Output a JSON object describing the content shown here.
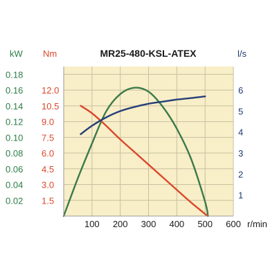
{
  "chart_data": {
    "type": "line",
    "title": "MR25-480-KSL-ATEX",
    "xlabel": "r/min",
    "xlim": [
      0,
      600
    ],
    "x_ticks": [
      "100",
      "200",
      "300",
      "400",
      "500",
      "600"
    ],
    "grid": true,
    "legend": "none",
    "plot_background": "#f8eec8",
    "axes": [
      {
        "unit": "kW",
        "side": "left-outer",
        "color": "#2e7d46",
        "ylim": [
          0,
          0.19
        ],
        "ticks": [
          "0.02",
          "0.04",
          "0.06",
          "0.08",
          "0.10",
          "0.12",
          "0.14",
          "0.16",
          "0.18"
        ]
      },
      {
        "unit": "Nm",
        "side": "left-inner",
        "color": "#d9482b",
        "ylim": [
          0,
          14.25
        ],
        "ticks": [
          "1.5",
          "3.0",
          "4.5",
          "6.0",
          "7.5",
          "9.0",
          "10.5",
          "12.0"
        ]
      },
      {
        "unit": "l/s",
        "side": "right",
        "color": "#1e3a6e",
        "ylim": [
          0,
          7.125
        ],
        "ticks": [
          "1",
          "2",
          "3",
          "4",
          "5",
          "6"
        ]
      }
    ],
    "series": [
      {
        "axis": "kW",
        "color": "#3a7a4a",
        "x": [
          0,
          50,
          100,
          150,
          200,
          250,
          300,
          350,
          400,
          450,
          500,
          510
        ],
        "y": [
          0,
          0.048,
          0.092,
          0.133,
          0.155,
          0.163,
          0.158,
          0.139,
          0.111,
          0.073,
          0.018,
          0
        ]
      },
      {
        "axis": "Nm",
        "color": "#d9482b",
        "x": [
          60,
          100,
          150,
          200,
          250,
          300,
          350,
          400,
          450,
          500,
          510
        ],
        "y": [
          10.5,
          9.8,
          8.6,
          7.3,
          6.1,
          4.9,
          3.7,
          2.5,
          1.3,
          0.2,
          0
        ]
      },
      {
        "axis": "l/s",
        "color": "#243f78",
        "x": [
          60,
          100,
          150,
          200,
          250,
          300,
          350,
          400,
          450,
          500
        ],
        "y": [
          3.9,
          4.3,
          4.7,
          5.0,
          5.2,
          5.35,
          5.45,
          5.55,
          5.62,
          5.7
        ]
      }
    ]
  }
}
